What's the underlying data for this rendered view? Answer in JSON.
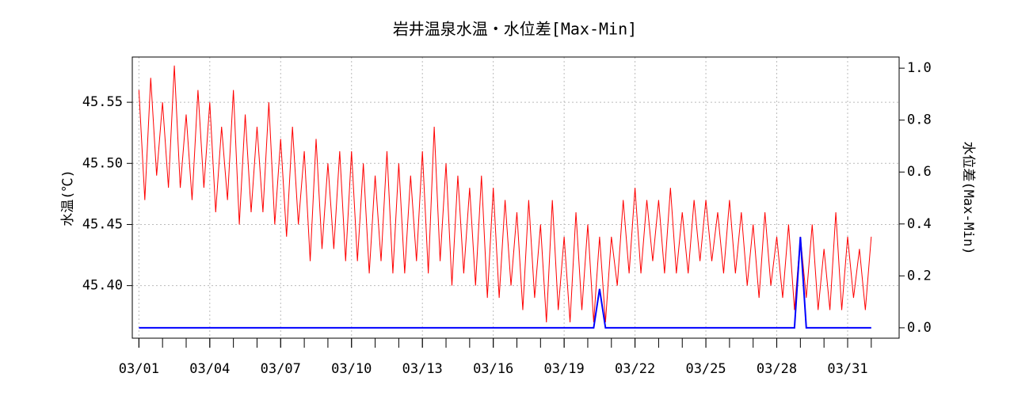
{
  "chart_data": {
    "type": "line",
    "title": "岩井温泉水温・水位差[Max-Min]",
    "ylabel": "水温(℃)",
    "y2label": "水位差(Max-Min)",
    "grid": true,
    "x": [
      1,
      1.25,
      1.5,
      1.75,
      2,
      2.25,
      2.5,
      2.75,
      3,
      3.25,
      3.5,
      3.75,
      4,
      4.25,
      4.5,
      4.75,
      5,
      5.25,
      5.5,
      5.75,
      6,
      6.25,
      6.5,
      6.75,
      7,
      7.25,
      7.5,
      7.75,
      8,
      8.25,
      8.5,
      8.75,
      9,
      9.25,
      9.5,
      9.75,
      10,
      10.25,
      10.5,
      10.75,
      11,
      11.25,
      11.5,
      11.75,
      12,
      12.25,
      12.5,
      12.75,
      13,
      13.25,
      13.5,
      13.75,
      14,
      14.25,
      14.5,
      14.75,
      15,
      15.25,
      15.5,
      15.75,
      16,
      16.25,
      16.5,
      16.75,
      17,
      17.25,
      17.5,
      17.75,
      18,
      18.25,
      18.5,
      18.75,
      19,
      19.25,
      19.5,
      19.75,
      20,
      20.25,
      20.5,
      20.75,
      21,
      21.25,
      21.5,
      21.75,
      22,
      22.25,
      22.5,
      22.75,
      23,
      23.25,
      23.5,
      23.75,
      24,
      24.25,
      24.5,
      24.75,
      25,
      25.25,
      25.5,
      25.75,
      26,
      26.25,
      26.5,
      26.75,
      27,
      27.25,
      27.5,
      27.75,
      28,
      28.25,
      28.5,
      28.75,
      29,
      29.25,
      29.5,
      29.75,
      30,
      30.25,
      30.5,
      30.75,
      31,
      31.25,
      31.5,
      31.75,
      32
    ],
    "xlim": [
      0.72,
      33.18
    ],
    "xticks": [
      {
        "value": 1,
        "label": "03/01"
      },
      {
        "value": 4,
        "label": "03/04"
      },
      {
        "value": 7,
        "label": "03/07"
      },
      {
        "value": 10,
        "label": "03/10"
      },
      {
        "value": 13,
        "label": "03/13"
      },
      {
        "value": 16,
        "label": "03/16"
      },
      {
        "value": 19,
        "label": "03/19"
      },
      {
        "value": 22,
        "label": "03/22"
      },
      {
        "value": 25,
        "label": "03/25"
      },
      {
        "value": 28,
        "label": "03/28"
      },
      {
        "value": 31,
        "label": "03/31"
      }
    ],
    "xminorticks": [
      1,
      2,
      3,
      4,
      5,
      6,
      7,
      8,
      9,
      10,
      11,
      12,
      13,
      14,
      15,
      16,
      17,
      18,
      19,
      20,
      21,
      22,
      23,
      24,
      25,
      26,
      27,
      28,
      29,
      30,
      31,
      32
    ],
    "ylim": [
      45.357,
      45.587
    ],
    "yticks": [
      {
        "value": 45.4,
        "label": "45.40"
      },
      45.45,
      {
        "value": 45.5,
        "label": "45.50"
      },
      45.55
    ],
    "y2lim": [
      -0.04,
      1.043
    ],
    "y2ticks": [
      {
        "value": 0,
        "label": "0.0"
      },
      0.2,
      0.4,
      0.6,
      0.8,
      {
        "value": 1,
        "label": "1.0"
      }
    ],
    "series": [
      {
        "color": "#ff0000",
        "values": [
          45.56,
          45.47,
          45.57,
          45.49,
          45.55,
          45.48,
          45.58,
          45.48,
          45.54,
          45.47,
          45.56,
          45.48,
          45.55,
          45.46,
          45.53,
          45.47,
          45.56,
          45.45,
          45.54,
          45.46,
          45.53,
          45.46,
          45.55,
          45.45,
          45.52,
          45.44,
          45.53,
          45.45,
          45.51,
          45.42,
          45.52,
          45.43,
          45.5,
          45.43,
          45.51,
          45.42,
          45.51,
          45.42,
          45.5,
          45.41,
          45.49,
          45.42,
          45.51,
          45.41,
          45.5,
          45.41,
          45.49,
          45.42,
          45.51,
          45.41,
          45.53,
          45.42,
          45.5,
          45.4,
          45.49,
          45.41,
          45.48,
          45.4,
          45.49,
          45.39,
          45.48,
          45.39,
          45.47,
          45.4,
          45.46,
          45.38,
          45.47,
          45.39,
          45.45,
          45.37,
          45.47,
          45.38,
          45.44,
          45.37,
          45.46,
          45.38,
          45.45,
          45.37,
          45.44,
          45.37,
          45.44,
          45.4,
          45.47,
          45.41,
          45.48,
          45.41,
          45.47,
          45.42,
          45.47,
          45.41,
          45.48,
          45.41,
          45.46,
          45.41,
          45.47,
          45.42,
          45.47,
          45.42,
          45.46,
          45.41,
          45.47,
          45.41,
          45.46,
          45.4,
          45.45,
          45.39,
          45.46,
          45.4,
          45.44,
          45.39,
          45.45,
          45.38,
          45.44,
          45.39,
          45.45,
          45.38,
          45.43,
          45.38,
          45.46,
          45.38,
          45.44,
          45.39,
          45.43,
          45.38,
          45.44
        ]
      },
      {
        "color": "#0000ff",
        "axis": "y2",
        "values": [
          0,
          0,
          0,
          0,
          0,
          0,
          0,
          0,
          0,
          0,
          0,
          0,
          0,
          0,
          0,
          0,
          0,
          0,
          0,
          0,
          0,
          0,
          0,
          0,
          0,
          0,
          0,
          0,
          0,
          0,
          0,
          0,
          0,
          0,
          0,
          0,
          0,
          0,
          0,
          0,
          0,
          0,
          0,
          0,
          0,
          0,
          0,
          0,
          0,
          0,
          0,
          0,
          0,
          0,
          0,
          0,
          0,
          0,
          0,
          0,
          0,
          0,
          0,
          0,
          0,
          0,
          0,
          0,
          0,
          0,
          0,
          0,
          0,
          0,
          0,
          0,
          0,
          0,
          0.15,
          0,
          0,
          0,
          0,
          0,
          0,
          0,
          0,
          0,
          0,
          0,
          0,
          0,
          0,
          0,
          0,
          0,
          0,
          0,
          0,
          0,
          0,
          0,
          0,
          0,
          0,
          0,
          0,
          0,
          0,
          0,
          0,
          0,
          0.35,
          0,
          0,
          0,
          0,
          0,
          0,
          0,
          0,
          0,
          0,
          0,
          0
        ]
      }
    ]
  }
}
